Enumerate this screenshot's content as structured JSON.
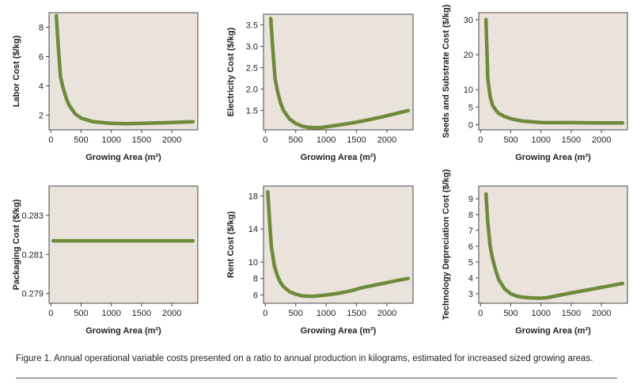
{
  "caption": "Figure 1. Annual operational variable costs presented on a ratio to annual production in kilograms, estimated for increased sized growing areas.",
  "colors": {
    "plot_bg": "#e9e3dc",
    "line": "#6e8a3a",
    "frame": "#4a4a4a",
    "text": "#231f20"
  },
  "chart_data": [
    {
      "type": "line",
      "xlabel": "Growing Area (m²)",
      "ylabel": "Labor Cost ($/kg)",
      "xlim": [
        -30,
        2430
      ],
      "ylim": [
        1.0,
        9.0
      ],
      "xticks": [
        0,
        500,
        1000,
        1500,
        2000
      ],
      "yticks": [
        2,
        4,
        6,
        8
      ],
      "ytick_labels": [
        "2",
        "4",
        "6",
        "8"
      ],
      "x": [
        90,
        120,
        160,
        200,
        250,
        300,
        400,
        500,
        700,
        1000,
        1250,
        1500,
        2000,
        2350
      ],
      "y": [
        8.8,
        6.8,
        4.6,
        3.9,
        3.2,
        2.7,
        2.1,
        1.8,
        1.55,
        1.45,
        1.42,
        1.45,
        1.5,
        1.55
      ]
    },
    {
      "type": "line",
      "xlabel": "Growing Area (m²)",
      "ylabel": "Electricity Cost ($/kg)",
      "xlim": [
        -30,
        2430
      ],
      "ylim": [
        1.05,
        3.75
      ],
      "xticks": [
        0,
        500,
        1000,
        1500,
        2000
      ],
      "yticks": [
        1.5,
        2.0,
        2.5,
        3.0,
        3.5
      ],
      "ytick_labels": [
        "1.5",
        "2.0",
        "2.5",
        "3.0",
        "3.5"
      ],
      "x": [
        90,
        120,
        160,
        200,
        250,
        300,
        400,
        500,
        600,
        700,
        800,
        900,
        1000,
        1250,
        1500,
        1750,
        2000,
        2350
      ],
      "y": [
        3.65,
        3.0,
        2.25,
        1.95,
        1.68,
        1.5,
        1.3,
        1.2,
        1.14,
        1.11,
        1.1,
        1.1,
        1.12,
        1.17,
        1.23,
        1.3,
        1.38,
        1.5
      ]
    },
    {
      "type": "line",
      "xlabel": "Growing Area (m²)",
      "ylabel": "Seeds and Substrate Cost ($/kg)",
      "xlim": [
        -30,
        2430
      ],
      "ylim": [
        -1.5,
        32.0
      ],
      "xticks": [
        0,
        500,
        1000,
        1500,
        2000
      ],
      "yticks": [
        0,
        5,
        10,
        20,
        30
      ],
      "ytick_labels": [
        "0",
        "5",
        "10",
        "20",
        "30"
      ],
      "x": [
        90,
        120,
        160,
        200,
        250,
        300,
        400,
        500,
        700,
        1000,
        1500,
        2000,
        2350
      ],
      "y": [
        30.0,
        13.0,
        8.0,
        5.5,
        4.2,
        3.2,
        2.3,
        1.7,
        1.0,
        0.6,
        0.55,
        0.5,
        0.5
      ]
    },
    {
      "type": "line",
      "xlabel": "Growing Area (m²)",
      "ylabel": "Packaging Cost ($/kg)",
      "xlim": [
        -30,
        2430
      ],
      "ylim": [
        0.2785,
        0.2845
      ],
      "xticks": [
        0,
        500,
        1000,
        1500,
        2000
      ],
      "yticks": [
        0.279,
        0.281,
        0.283
      ],
      "ytick_labels": [
        "0.279",
        "0.281",
        "0.283"
      ],
      "x": [
        40,
        2350
      ],
      "y": [
        0.2817,
        0.2817
      ]
    },
    {
      "type": "line",
      "xlabel": "Growing Area (m²)",
      "ylabel": "Rent Cost ($/kg)",
      "xlim": [
        -30,
        2430
      ],
      "ylim": [
        5.0,
        19.2
      ],
      "xticks": [
        0,
        500,
        1000,
        1500,
        2000
      ],
      "yticks": [
        6,
        8,
        10,
        14,
        18
      ],
      "ytick_labels": [
        "6",
        "8",
        "10",
        "14",
        "18"
      ],
      "x": [
        40,
        70,
        100,
        150,
        200,
        250,
        300,
        400,
        500,
        600,
        700,
        800,
        1000,
        1200,
        1400,
        1600,
        1800,
        2000,
        2200,
        2350
      ],
      "y": [
        18.5,
        15.0,
        11.8,
        9.5,
        8.3,
        7.5,
        7.0,
        6.4,
        6.1,
        5.9,
        5.85,
        5.85,
        6.0,
        6.2,
        6.5,
        6.9,
        7.2,
        7.5,
        7.8,
        8.0
      ]
    },
    {
      "type": "line",
      "xlabel": "Growing Area (m²)",
      "ylabel": "Technology Depreciation Cost ($/kg)",
      "xlim": [
        -30,
        2430
      ],
      "ylim": [
        2.4,
        9.8
      ],
      "xticks": [
        0,
        500,
        1000,
        1500,
        2000
      ],
      "yticks": [
        3,
        4,
        5,
        6,
        7,
        8,
        9
      ],
      "ytick_labels": [
        "3",
        "4",
        "5",
        "6",
        "7",
        "8",
        "9"
      ],
      "x": [
        90,
        120,
        160,
        200,
        250,
        300,
        400,
        500,
        600,
        700,
        800,
        900,
        1000,
        1100,
        1500,
        2000,
        2350
      ],
      "y": [
        9.3,
        7.5,
        6.0,
        5.2,
        4.5,
        3.9,
        3.3,
        3.0,
        2.85,
        2.78,
        2.75,
        2.73,
        2.72,
        2.75,
        3.05,
        3.4,
        3.65
      ]
    }
  ]
}
